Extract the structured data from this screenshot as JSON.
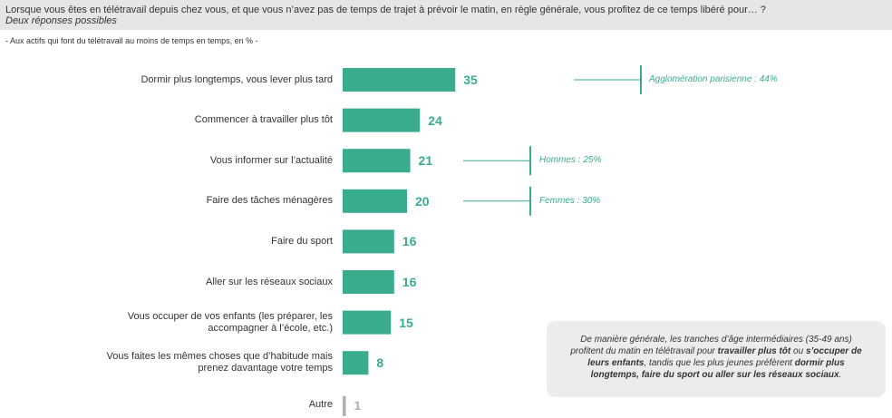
{
  "header": {
    "question": "Lorsque vous êtes en télétravail depuis chez vous, et que vous n’avez pas de temps de trajet à prévoir le matin, en règle générale, vous profitez de ce temps libéré pour… ?",
    "subtitle": "Deux réponses possibles"
  },
  "base_note": "- Aux actifs qui font du télétravail au moins de temps en temps, en % -",
  "chart_data": {
    "type": "bar",
    "orientation": "horizontal",
    "unit": "%",
    "categories": [
      [
        "Dormir plus longtemps, vous lever plus tard"
      ],
      [
        "Commencer à travailler plus tôt"
      ],
      [
        "Vous informer sur l’actualité"
      ],
      [
        "Faire des tâches ménagères"
      ],
      [
        "Faire du sport"
      ],
      [
        "Aller sur les réseaux sociaux"
      ],
      [
        "Vous occuper de vos enfants (les préparer, les",
        "accompagner à l’école, etc.)"
      ],
      [
        "Vous faites les mêmes choses que d’habitude mais",
        "prenez davantage votre temps"
      ],
      [
        "Autre"
      ]
    ],
    "values": [
      35,
      24,
      21,
      20,
      16,
      16,
      15,
      8,
      1
    ],
    "value_labels": [
      "35",
      "24",
      "21",
      "20",
      "16",
      "16",
      "15",
      "8",
      "1"
    ],
    "muted": [
      false,
      false,
      false,
      false,
      false,
      false,
      false,
      false,
      true
    ],
    "colors": {
      "bar": "#3aac8e",
      "muted": "#b0b0b0"
    },
    "callouts": [
      {
        "category_index": 0,
        "text": "Agglomération parisienne : 44%"
      },
      {
        "category_index": 2,
        "text": "Hommes : 25%"
      },
      {
        "category_index": 3,
        "text": "Femmes : 30%"
      }
    ]
  },
  "summary": {
    "parts": [
      {
        "text": "De manière générale, les tranches d’âge intermédiaires (35-49 ans) profitent du matin en télétravail pour ",
        "bold": false
      },
      {
        "text": "travailler plus tôt",
        "bold": true
      },
      {
        "text": " ou ",
        "bold": false
      },
      {
        "text": "s’occuper de leurs enfants",
        "bold": true
      },
      {
        "text": ", tandis que les plus jeunes préfèrent ",
        "bold": false
      },
      {
        "text": "dormir plus longtemps, faire du sport ou aller sur les réseaux sociaux",
        "bold": true
      },
      {
        "text": ".",
        "bold": false
      }
    ]
  }
}
